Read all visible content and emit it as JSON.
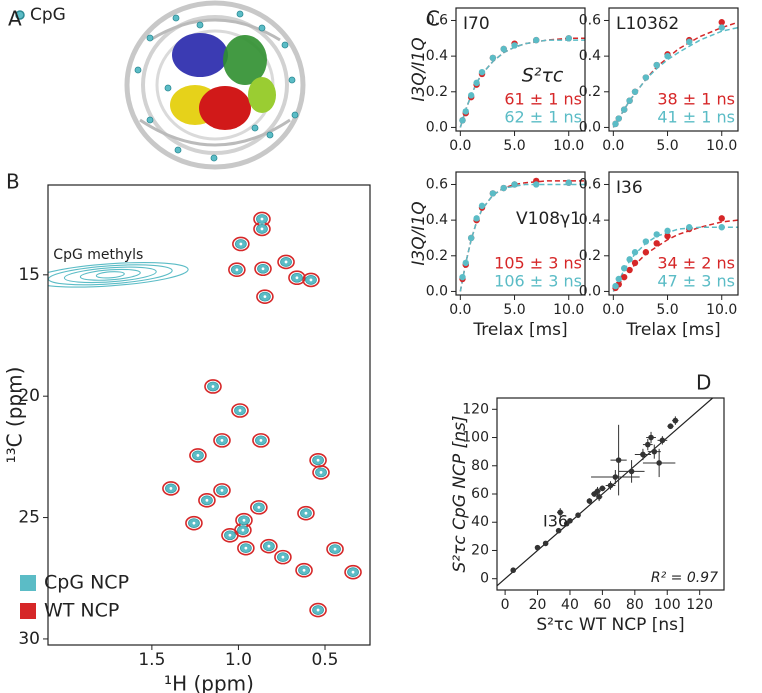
{
  "panel_labels": [
    "A",
    "B",
    "C",
    "D"
  ],
  "structure_legend": "CpG",
  "chart_data": [
    {
      "type": "contour",
      "xlabel": "¹H (ppm)",
      "ylabel": "¹³C (ppm)",
      "xlim": [
        2.1,
        0.24
      ],
      "ylim": [
        30.25,
        11.3
      ],
      "xticks": [
        1.5,
        {
          "value": 1.0,
          "label": "1.0"
        },
        0.5
      ],
      "yticks": [
        15,
        20,
        25,
        30
      ],
      "methyl_peak": {
        "label": "CpG methyls",
        "x": 1.74,
        "y": 15.0
      },
      "series": [
        {
          "name": "CpG NCP",
          "color": "#5bbcc6",
          "marker": "filled",
          "x": [
            0.864,
            0.864,
            0.986,
            0.725,
            0.662,
            0.581,
            0.858,
            1.009,
            0.847,
            1.147,
            0.991,
            1.095,
            1.234,
            0.87,
            0.54,
            0.523,
            1.39,
            1.095,
            1.182,
            0.882,
            0.968,
            0.61,
            1.257,
            0.974,
            1.049,
            0.957,
            0.824,
            0.442,
            0.743,
            0.621,
            0.338,
            0.54
          ],
          "values": [
            12.7,
            13.11,
            13.73,
            14.47,
            15.12,
            15.21,
            14.75,
            14.79,
            15.9,
            19.6,
            20.59,
            21.82,
            22.44,
            21.82,
            22.64,
            23.14,
            23.8,
            23.88,
            24.29,
            24.58,
            25.11,
            24.82,
            25.23,
            25.52,
            25.73,
            26.26,
            26.18,
            26.3,
            26.63,
            27.17,
            27.25,
            28.81
          ]
        },
        {
          "name": "WT NCP",
          "color": "#d62728",
          "marker": "ring",
          "x": [
            0.864,
            0.864,
            0.986,
            0.725,
            0.662,
            0.581,
            0.858,
            1.009,
            0.847,
            1.147,
            0.991,
            1.095,
            1.234,
            0.87,
            0.54,
            0.523,
            1.39,
            1.095,
            1.182,
            0.882,
            0.968,
            0.61,
            1.257,
            0.974,
            1.049,
            0.957,
            0.824,
            0.442,
            0.743,
            0.621,
            0.338,
            0.54
          ],
          "values": [
            12.7,
            13.11,
            13.73,
            14.47,
            15.12,
            15.21,
            14.75,
            14.79,
            15.9,
            19.6,
            20.59,
            21.82,
            22.44,
            21.82,
            22.64,
            23.14,
            23.8,
            23.88,
            24.29,
            24.58,
            25.11,
            24.82,
            25.23,
            25.52,
            25.73,
            26.26,
            26.18,
            26.3,
            26.63,
            27.17,
            27.25,
            28.81
          ]
        }
      ]
    },
    {
      "type": "line",
      "title": "I70",
      "tau_label": "S²τc",
      "ylabel": "I3Q/I1Q",
      "xlim": [
        -0.4,
        11.5
      ],
      "ylim": [
        -0.02,
        0.67
      ],
      "xticks": [
        {
          "value": 0,
          "label": "0.0"
        },
        {
          "value": 5,
          "label": "5.0"
        },
        {
          "value": 10,
          "label": "10.0"
        }
      ],
      "yticks": [
        {
          "value": 0,
          "label": "0.0"
        },
        0.2,
        0.4,
        0.6
      ],
      "value_notes": [
        {
          "text": "61 ± 1 ns",
          "color": "#d62728"
        },
        {
          "text": "62 ± 1 ns",
          "color": "#5bbcc6"
        }
      ],
      "series": [
        {
          "color": "#d62728",
          "x": [
            0.2,
            0.5,
            1,
            1.5,
            2,
            3,
            4,
            5,
            7,
            10
          ],
          "values": [
            0.04,
            0.08,
            0.17,
            0.24,
            0.3,
            0.39,
            0.44,
            0.47,
            0.49,
            0.5
          ]
        },
        {
          "color": "#5bbcc6",
          "x": [
            0.2,
            0.5,
            1,
            1.5,
            2,
            3,
            4,
            5,
            7,
            10
          ],
          "values": [
            0.04,
            0.09,
            0.18,
            0.25,
            0.31,
            0.39,
            0.44,
            0.46,
            0.49,
            0.5
          ]
        }
      ],
      "fits": [
        {
          "color": "#d62728",
          "x": [
            0,
            0.5,
            1,
            1.5,
            2,
            3,
            4,
            5,
            6,
            8,
            10,
            11.5
          ],
          "values": [
            0,
            0.1,
            0.18,
            0.25,
            0.3,
            0.37,
            0.42,
            0.45,
            0.47,
            0.49,
            0.5,
            0.5
          ]
        },
        {
          "color": "#5bbcc6",
          "x": [
            0,
            0.5,
            1,
            1.5,
            2,
            3,
            4,
            5,
            6,
            8,
            10,
            11.5
          ],
          "values": [
            0,
            0.1,
            0.18,
            0.25,
            0.3,
            0.37,
            0.42,
            0.45,
            0.47,
            0.49,
            0.49,
            0.49
          ]
        }
      ]
    },
    {
      "type": "line",
      "title": "L103δ2",
      "xlim": [
        -0.4,
        11.5
      ],
      "ylim": [
        -0.02,
        0.67
      ],
      "xticks": [
        {
          "value": 0,
          "label": "0.0"
        },
        {
          "value": 5,
          "label": "5.0"
        },
        {
          "value": 10,
          "label": "10.0"
        }
      ],
      "yticks": [
        {
          "value": 0,
          "label": "0.0"
        },
        0.2,
        0.4,
        0.6
      ],
      "value_notes": [
        {
          "text": "38 ± 1 ns",
          "color": "#d62728"
        },
        {
          "text": "41 ± 1 ns",
          "color": "#5bbcc6"
        }
      ],
      "series": [
        {
          "color": "#d62728",
          "x": [
            0.2,
            0.5,
            1,
            1.5,
            2,
            3,
            4,
            5,
            7,
            10
          ],
          "values": [
            0.02,
            0.05,
            0.1,
            0.15,
            0.2,
            0.28,
            0.35,
            0.41,
            0.49,
            0.59
          ]
        },
        {
          "color": "#5bbcc6",
          "x": [
            0.2,
            0.5,
            1,
            1.5,
            2,
            3,
            4,
            5,
            7,
            10
          ],
          "values": [
            0.02,
            0.05,
            0.1,
            0.15,
            0.2,
            0.28,
            0.35,
            0.4,
            0.48,
            0.56
          ]
        }
      ],
      "fits": [
        {
          "color": "#d62728",
          "x": [
            0,
            0.5,
            1,
            1.5,
            2,
            3,
            4,
            5,
            6,
            8,
            10,
            11.5
          ],
          "values": [
            0,
            0.05,
            0.1,
            0.15,
            0.19,
            0.27,
            0.34,
            0.39,
            0.44,
            0.51,
            0.56,
            0.59
          ]
        },
        {
          "color": "#5bbcc6",
          "x": [
            0,
            0.5,
            1,
            1.5,
            2,
            3,
            4,
            5,
            6,
            8,
            10,
            11.5
          ],
          "values": [
            0,
            0.05,
            0.1,
            0.15,
            0.19,
            0.27,
            0.33,
            0.38,
            0.42,
            0.49,
            0.54,
            0.56
          ]
        }
      ]
    },
    {
      "type": "line",
      "title": "V108γ1",
      "ylabel": "I3Q/I1Q",
      "xlabel": "Trelax [ms]",
      "xlim": [
        -0.4,
        11.5
      ],
      "ylim": [
        -0.02,
        0.67
      ],
      "xticks": [
        {
          "value": 0,
          "label": "0.0"
        },
        {
          "value": 5,
          "label": "5.0"
        },
        {
          "value": 10,
          "label": "10.0"
        }
      ],
      "yticks": [
        {
          "value": 0,
          "label": "0.0"
        },
        0.2,
        0.4,
        0.6
      ],
      "value_notes": [
        {
          "text": "105 ± 3 ns",
          "color": "#d62728"
        },
        {
          "text": "106 ± 3 ns",
          "color": "#5bbcc6"
        }
      ],
      "series": [
        {
          "color": "#d62728",
          "x": [
            0.2,
            0.5,
            1,
            1.5,
            2,
            3,
            4,
            5,
            7,
            10
          ],
          "values": [
            0.07,
            0.15,
            0.3,
            0.4,
            0.47,
            0.55,
            0.58,
            0.6,
            0.62,
            0.61
          ]
        },
        {
          "color": "#5bbcc6",
          "x": [
            0.2,
            0.5,
            1,
            1.5,
            2,
            3,
            4,
            5,
            7,
            10
          ],
          "values": [
            0.08,
            0.16,
            0.3,
            0.41,
            0.48,
            0.55,
            0.58,
            0.6,
            0.6,
            0.61
          ]
        }
      ],
      "fits": [
        {
          "color": "#d62728",
          "x": [
            0,
            0.5,
            1,
            1.5,
            2,
            3,
            4,
            5,
            6,
            8,
            10,
            11.5
          ],
          "values": [
            0,
            0.16,
            0.29,
            0.39,
            0.46,
            0.54,
            0.58,
            0.6,
            0.61,
            0.62,
            0.62,
            0.62
          ]
        },
        {
          "color": "#5bbcc6",
          "x": [
            0,
            0.5,
            1,
            1.5,
            2,
            3,
            4,
            5,
            6,
            8,
            10,
            11.5
          ],
          "values": [
            0,
            0.16,
            0.29,
            0.39,
            0.46,
            0.54,
            0.58,
            0.59,
            0.6,
            0.6,
            0.6,
            0.6
          ]
        }
      ]
    },
    {
      "type": "line",
      "title": "I36",
      "xlabel": "Trelax [ms]",
      "xlim": [
        -0.4,
        11.5
      ],
      "ylim": [
        -0.02,
        0.67
      ],
      "xticks": [
        {
          "value": 0,
          "label": "0.0"
        },
        {
          "value": 5,
          "label": "5.0"
        },
        {
          "value": 10,
          "label": "10.0"
        }
      ],
      "yticks": [
        {
          "value": 0,
          "label": "0.0"
        },
        0.2,
        0.4,
        0.6
      ],
      "value_notes": [
        {
          "text": "34 ± 2 ns",
          "color": "#d62728"
        },
        {
          "text": "47 ± 3 ns",
          "color": "#5bbcc6"
        }
      ],
      "series": [
        {
          "color": "#d62728",
          "x": [
            0.2,
            0.5,
            1,
            1.5,
            2,
            3,
            4,
            5,
            7,
            10
          ],
          "values": [
            0.02,
            0.04,
            0.08,
            0.12,
            0.16,
            0.22,
            0.27,
            0.31,
            0.35,
            0.41
          ]
        },
        {
          "color": "#5bbcc6",
          "x": [
            0.2,
            0.5,
            1,
            1.5,
            2,
            3,
            4,
            5,
            7,
            10
          ],
          "values": [
            0.03,
            0.07,
            0.13,
            0.18,
            0.22,
            0.28,
            0.32,
            0.34,
            0.36,
            0.36
          ]
        }
      ],
      "fits": [
        {
          "color": "#d62728",
          "x": [
            0,
            0.5,
            1,
            1.5,
            2,
            3,
            4,
            5,
            6,
            8,
            10,
            11.5
          ],
          "values": [
            0,
            0.04,
            0.08,
            0.12,
            0.15,
            0.21,
            0.25,
            0.29,
            0.32,
            0.36,
            0.39,
            0.4
          ]
        },
        {
          "color": "#5bbcc6",
          "x": [
            0,
            0.5,
            1,
            1.5,
            2,
            3,
            4,
            5,
            6,
            8,
            10,
            11.5
          ],
          "values": [
            0,
            0.06,
            0.12,
            0.17,
            0.21,
            0.27,
            0.31,
            0.33,
            0.35,
            0.36,
            0.36,
            0.36
          ]
        }
      ]
    },
    {
      "type": "scatter",
      "xlabel": "S²τc WT NCP [ns]",
      "ylabel": "S²τc CpG NCP [ns]",
      "annotation": "I36",
      "r2_label": "R² = 0.97",
      "diagonal": true,
      "xlim": [
        -5,
        135
      ],
      "ylim": [
        -8,
        128
      ],
      "xticks": [
        0,
        20,
        40,
        60,
        80,
        100,
        120
      ],
      "yticks": [
        0,
        20,
        40,
        60,
        80,
        100,
        120
      ],
      "series": [
        {
          "color": "#333333",
          "x": [
            5,
            20,
            25,
            33,
            34,
            38,
            40,
            45,
            52,
            55,
            57,
            58,
            60,
            65,
            70,
            68,
            78,
            85,
            88,
            90,
            92,
            95,
            97,
            105,
            102
          ],
          "values": [
            6,
            22,
            25,
            34,
            47,
            39,
            41,
            45,
            55,
            60,
            62,
            58,
            64,
            66,
            84,
            72,
            76,
            88,
            95,
            100,
            90,
            82,
            98,
            112,
            108
          ],
          "xerr": [
            1,
            1,
            1,
            1,
            2,
            1,
            1,
            1,
            1,
            2,
            2,
            2,
            2,
            3,
            5,
            15,
            8,
            5,
            3,
            3,
            4,
            10,
            3,
            2,
            2
          ],
          "yerr": [
            1,
            1,
            1,
            1,
            3,
            1,
            1,
            1,
            2,
            2,
            3,
            3,
            2,
            3,
            25,
            5,
            8,
            4,
            4,
            4,
            5,
            10,
            3,
            3,
            2
          ]
        }
      ]
    }
  ]
}
